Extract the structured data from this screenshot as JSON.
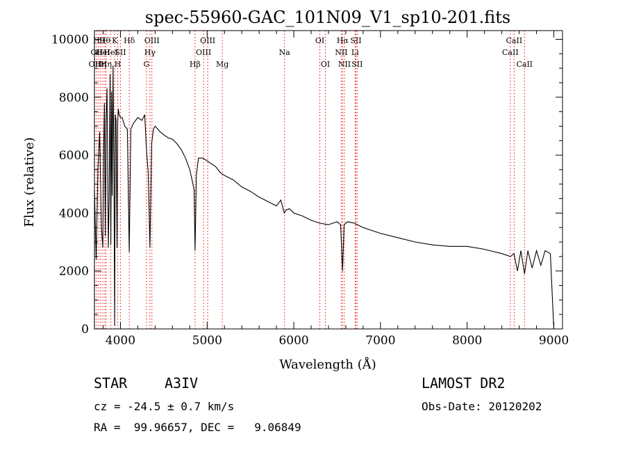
{
  "chart_data": {
    "type": "line",
    "title": "spec-55960-GAC_101N09_V1_sp10-201.fits",
    "xlabel": "Wavelength (Å)",
    "ylabel": "Flux (relative)",
    "xlim": [
      3700,
      9100
    ],
    "ylim": [
      0,
      10300
    ],
    "x_ticks": [
      4000,
      5000,
      6000,
      7000,
      8000,
      9000
    ],
    "y_ticks": [
      0,
      2000,
      4000,
      6000,
      8000,
      10000
    ],
    "grid": false,
    "series": [
      {
        "x": [
          3700,
          3720,
          3740,
          3760,
          3780,
          3797,
          3805,
          3815,
          3825,
          3835,
          3845,
          3860,
          3870,
          3880,
          3889,
          3898,
          3905,
          3915,
          3925,
          3933,
          3940,
          3950,
          3960,
          3968,
          3975,
          3985,
          4000,
          4020,
          4050,
          4080,
          4101,
          4120,
          4150,
          4200,
          4250,
          4280,
          4300,
          4320,
          4340,
          4360,
          4380,
          4400,
          4430,
          4460,
          4500,
          4550,
          4600,
          4650,
          4700,
          4750,
          4800,
          4830,
          4850,
          4861,
          4875,
          4900,
          4950,
          5000,
          5050,
          5100,
          5150,
          5200,
          5300,
          5400,
          5500,
          5600,
          5700,
          5800,
          5850,
          5890,
          5910,
          5950,
          6000,
          6100,
          6200,
          6300,
          6400,
          6450,
          6500,
          6540,
          6563,
          6580,
          6620,
          6700,
          6800,
          6900,
          7000,
          7200,
          7400,
          7600,
          7800,
          8000,
          8200,
          8400,
          8500,
          8540,
          8580,
          8620,
          8662,
          8700,
          8750,
          8800,
          8850,
          8900,
          8960,
          9000
        ],
        "y": [
          4800,
          2400,
          5500,
          6800,
          3500,
          2800,
          6000,
          7800,
          3200,
          7200,
          8300,
          2800,
          4500,
          8800,
          2900,
          8200,
          4600,
          9100,
          5300,
          100,
          7400,
          7200,
          2800,
          7100,
          7600,
          7400,
          7300,
          7300,
          7000,
          6900,
          2650,
          6900,
          7100,
          7300,
          7200,
          7400,
          6200,
          5400,
          2800,
          6400,
          6900,
          7000,
          6900,
          6800,
          6700,
          6600,
          6550,
          6400,
          6200,
          5900,
          5500,
          5100,
          4800,
          2700,
          5300,
          5900,
          5900,
          5800,
          5700,
          5600,
          5400,
          5300,
          5150,
          4900,
          4750,
          4550,
          4400,
          4250,
          4450,
          4000,
          4100,
          4150,
          4000,
          3900,
          3750,
          3650,
          3600,
          3650,
          3700,
          3600,
          2000,
          3600,
          3700,
          3650,
          3500,
          3400,
          3300,
          3150,
          3000,
          2900,
          2850,
          2850,
          2750,
          2600,
          2500,
          2600,
          2000,
          2700,
          1900,
          2700,
          2100,
          2700,
          2200,
          2700,
          2600,
          0
        ]
      }
    ],
    "lines": [
      {
        "wl": 3704,
        "label": "OII",
        "row": 2,
        "color": "#ee0000"
      },
      {
        "wl": 3727,
        "label": "OII",
        "row": 1,
        "color": "#ee0000"
      },
      {
        "wl": 3750,
        "label": "Hθ",
        "row": 0,
        "color": "#ee0000"
      },
      {
        "wl": 3772,
        "label": "Hη",
        "row": 2,
        "color": "#ee0000"
      },
      {
        "wl": 3797,
        "label": "HeI",
        "row": 1,
        "color": "#ee0000"
      },
      {
        "wl": 3820,
        "label": "Hθ",
        "row": 0,
        "color": "#ee0000"
      },
      {
        "wl": 3835,
        "label": "Hη",
        "row": 2,
        "color": "#ee0000"
      },
      {
        "wl": 3889,
        "label": "HeI",
        "row": 1,
        "color": "#ee0000"
      },
      {
        "wl": 3934,
        "label": "K",
        "row": 0,
        "color": "#ee0000"
      },
      {
        "wl": 3969,
        "label": "H",
        "row": 2,
        "color": "#ee0000"
      },
      {
        "wl": 4000,
        "label": "SII",
        "row": 1,
        "color": "#ee0000"
      },
      {
        "wl": 4102,
        "label": "Hδ",
        "row": 0,
        "color": "#ee0000"
      },
      {
        "wl": 4300,
        "label": "G",
        "row": 2,
        "color": "#ee0000"
      },
      {
        "wl": 4340,
        "label": "Hγ",
        "row": 1,
        "color": "#ee0000"
      },
      {
        "wl": 4363,
        "label": "OIII",
        "row": 0,
        "color": "#ee0000"
      },
      {
        "wl": 4861,
        "label": "Hβ",
        "row": 2,
        "color": "#ee0000"
      },
      {
        "wl": 4959,
        "label": "OIII",
        "row": 1,
        "color": "#ee0000"
      },
      {
        "wl": 5007,
        "label": "OIII",
        "row": 0,
        "color": "#ee0000"
      },
      {
        "wl": 5175,
        "label": "Mg",
        "row": 2,
        "color": "#ee0000"
      },
      {
        "wl": 5893,
        "label": "Na",
        "row": 1,
        "color": "#ee0000"
      },
      {
        "wl": 6300,
        "label": "OI",
        "row": 0,
        "color": "#ee0000"
      },
      {
        "wl": 6364,
        "label": "OI",
        "row": 2,
        "color": "#ee0000"
      },
      {
        "wl": 6548,
        "label": "NII",
        "row": 1,
        "color": "#ee0000"
      },
      {
        "wl": 6563,
        "label": "Hα",
        "row": 0,
        "color": "#ee0000"
      },
      {
        "wl": 6584,
        "label": "NII",
        "row": 2,
        "color": "#ee0000"
      },
      {
        "wl": 6707,
        "label": "Li",
        "row": 1,
        "color": "#ee0000"
      },
      {
        "wl": 6716,
        "label": "SII",
        "row": 0,
        "color": "#ee0000"
      },
      {
        "wl": 6731,
        "label": "SII",
        "row": 2,
        "color": "#ee0000"
      },
      {
        "wl": 8498,
        "label": "CaII",
        "row": 1,
        "color": "#ee0000"
      },
      {
        "wl": 8542,
        "label": "CaII",
        "row": 0,
        "color": "#ee0000"
      },
      {
        "wl": 8662,
        "label": "CaII",
        "row": 2,
        "color": "#ee0000"
      }
    ]
  },
  "info": {
    "object_class": "STAR",
    "subclass": "A3IV",
    "survey": "LAMOST DR2",
    "redshift": "cz = -24.5 ± 0.7 km/s",
    "obs_date": "Obs-Date: 20120202",
    "coords": "RA =  99.96657, DEC =   9.06849"
  },
  "colors": {
    "spectrum": "#000000",
    "line_markers": "#ee0000",
    "background": "#ffffff"
  }
}
